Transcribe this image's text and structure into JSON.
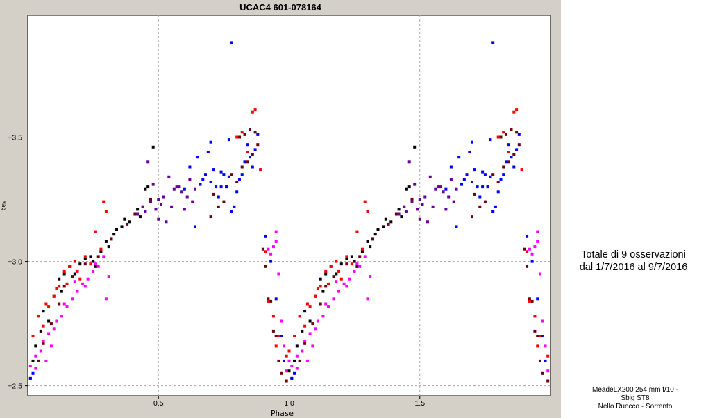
{
  "chart_data": {
    "type": "scatter",
    "title": "UCAC4 601-078164",
    "xlabel": "Phase",
    "ylabel": "Mag",
    "xlim": [
      0.0,
      2.0
    ],
    "ylim": [
      3.99,
      2.46
    ],
    "y_inverted": true,
    "grid": true,
    "xticks": [
      {
        "value": 0.5,
        "label": "0.5"
      },
      {
        "value": 1.0,
        "label": "1.0"
      },
      {
        "value": 1.5,
        "label": "1.5"
      }
    ],
    "yticks": [
      {
        "value": 2.5,
        "label": "+2.5"
      },
      {
        "value": 3.0,
        "label": "+3.0"
      },
      {
        "value": 3.5,
        "label": "+3.5"
      }
    ],
    "phase_repeat": 1.0,
    "series": [
      {
        "color": "#000000",
        "points": [
          [
            0.0,
            2.56
          ],
          [
            0.02,
            2.6
          ],
          [
            0.03,
            2.66
          ],
          [
            0.05,
            2.72
          ],
          [
            0.1,
            2.86
          ],
          [
            0.12,
            2.93
          ],
          [
            0.14,
            2.95
          ],
          [
            0.16,
            2.98
          ],
          [
            0.2,
            2.99
          ],
          [
            0.24,
            3.02
          ],
          [
            0.28,
            3.04
          ],
          [
            0.3,
            3.08
          ],
          [
            0.33,
            3.11
          ],
          [
            0.36,
            3.14
          ],
          [
            0.39,
            3.16
          ],
          [
            0.42,
            3.21
          ],
          [
            0.45,
            3.29
          ],
          [
            0.48,
            3.46
          ],
          [
            0.43,
            3.18
          ],
          [
            0.37,
            3.17
          ],
          [
            0.31,
            3.06
          ],
          [
            0.26,
            2.98
          ],
          [
            0.22,
            3.01
          ],
          [
            0.18,
            2.95
          ],
          [
            0.08,
            2.76
          ],
          [
            0.06,
            2.8
          ],
          [
            0.13,
            2.88
          ],
          [
            0.34,
            3.13
          ],
          [
            0.46,
            3.3
          ],
          [
            0.25,
            3.0
          ]
        ]
      },
      {
        "color": "#6b0010",
        "points": [
          [
            0.01,
            2.53
          ],
          [
            0.04,
            2.6
          ],
          [
            0.06,
            2.67
          ],
          [
            0.09,
            2.75
          ],
          [
            0.12,
            2.83
          ],
          [
            0.14,
            2.9
          ],
          [
            0.17,
            2.94
          ],
          [
            0.22,
            2.99
          ],
          [
            0.27,
            3.02
          ],
          [
            0.32,
            3.09
          ],
          [
            0.38,
            3.15
          ],
          [
            0.41,
            3.19
          ],
          [
            0.44,
            3.22
          ],
          [
            0.47,
            3.25
          ],
          [
            0.7,
            3.18
          ],
          [
            0.73,
            3.22
          ],
          [
            0.75,
            3.24
          ],
          [
            0.8,
            3.32
          ],
          [
            0.82,
            3.38
          ],
          [
            0.84,
            3.4
          ],
          [
            0.86,
            3.43
          ],
          [
            0.88,
            3.47
          ],
          [
            0.9,
            3.05
          ],
          [
            0.92,
            2.85
          ],
          [
            0.94,
            2.72
          ],
          [
            0.96,
            2.6
          ],
          [
            0.99,
            2.52
          ],
          [
            0.97,
            2.55
          ],
          [
            0.81,
            3.5
          ],
          [
            0.83,
            3.51
          ],
          [
            0.85,
            3.53
          ],
          [
            0.78,
            3.35
          ],
          [
            0.91,
            2.98
          ],
          [
            0.93,
            2.84
          ],
          [
            0.95,
            2.7
          ],
          [
            0.76,
            3.3
          ],
          [
            0.71,
            3.27
          ],
          [
            0.87,
            3.52
          ]
        ]
      },
      {
        "color": "#ff0000",
        "points": [
          [
            0.0,
            2.64
          ],
          [
            0.02,
            2.7
          ],
          [
            0.04,
            2.78
          ],
          [
            0.06,
            2.74
          ],
          [
            0.08,
            2.82
          ],
          [
            0.1,
            2.86
          ],
          [
            0.12,
            2.9
          ],
          [
            0.14,
            2.96
          ],
          [
            0.16,
            2.98
          ],
          [
            0.18,
            3.0
          ],
          [
            0.2,
            2.93
          ],
          [
            0.22,
            3.02
          ],
          [
            0.24,
            2.99
          ],
          [
            0.26,
            3.12
          ],
          [
            0.28,
            3.05
          ],
          [
            0.29,
            3.24
          ],
          [
            0.3,
            3.2
          ],
          [
            0.8,
            3.5
          ],
          [
            0.82,
            3.52
          ],
          [
            0.86,
            3.6
          ],
          [
            0.87,
            3.61
          ],
          [
            0.84,
            3.44
          ],
          [
            0.89,
            3.37
          ],
          [
            0.91,
            3.04
          ],
          [
            0.92,
            2.84
          ],
          [
            0.94,
            2.78
          ],
          [
            0.96,
            2.7
          ],
          [
            0.99,
            2.62
          ],
          [
            0.07,
            2.83
          ],
          [
            0.11,
            2.89
          ],
          [
            0.15,
            2.91
          ],
          [
            0.19,
            2.96
          ],
          [
            0.95,
            2.66
          ]
        ]
      },
      {
        "color": "#ff00ff",
        "points": [
          [
            0.0,
            2.6
          ],
          [
            0.01,
            2.58
          ],
          [
            0.03,
            2.62
          ],
          [
            0.05,
            2.64
          ],
          [
            0.06,
            2.68
          ],
          [
            0.08,
            2.71
          ],
          [
            0.1,
            2.73
          ],
          [
            0.11,
            2.76
          ],
          [
            0.13,
            2.78
          ],
          [
            0.15,
            2.82
          ],
          [
            0.17,
            2.85
          ],
          [
            0.19,
            2.88
          ],
          [
            0.21,
            2.91
          ],
          [
            0.23,
            2.93
          ],
          [
            0.25,
            2.96
          ],
          [
            0.27,
            2.98
          ],
          [
            0.29,
            3.02
          ],
          [
            0.31,
            2.94
          ],
          [
            0.3,
            2.85
          ],
          [
            0.26,
            2.99
          ],
          [
            0.22,
            2.9
          ],
          [
            0.18,
            2.92
          ],
          [
            0.14,
            2.83
          ],
          [
            0.09,
            2.66
          ],
          [
            0.07,
            2.6
          ],
          [
            0.93,
            3.03
          ],
          [
            0.94,
            3.06
          ],
          [
            0.95,
            3.08
          ],
          [
            0.96,
            2.95
          ],
          [
            0.97,
            2.76
          ],
          [
            0.98,
            2.66
          ],
          [
            0.99,
            2.56
          ],
          [
            0.92,
            3.05
          ],
          [
            0.95,
            3.12
          ],
          [
            0.03,
            2.57
          ]
        ]
      },
      {
        "color": "#660099",
        "points": [
          [
            0.45,
            3.2
          ],
          [
            0.47,
            3.24
          ],
          [
            0.49,
            3.21
          ],
          [
            0.5,
            3.25
          ],
          [
            0.51,
            3.23
          ],
          [
            0.53,
            3.16
          ],
          [
            0.55,
            3.22
          ],
          [
            0.57,
            3.3
          ],
          [
            0.59,
            3.28
          ],
          [
            0.61,
            3.26
          ],
          [
            0.63,
            3.24
          ],
          [
            0.48,
            3.31
          ],
          [
            0.52,
            3.26
          ],
          [
            0.54,
            3.34
          ],
          [
            0.56,
            3.29
          ],
          [
            0.58,
            3.3
          ],
          [
            0.6,
            3.21
          ],
          [
            0.62,
            3.33
          ],
          [
            0.64,
            3.29
          ],
          [
            0.46,
            3.4
          ],
          [
            0.44,
            3.22
          ],
          [
            0.42,
            3.19
          ],
          [
            0.5,
            3.17
          ]
        ]
      },
      {
        "color": "#0000ff",
        "points": [
          [
            0.01,
            2.53
          ],
          [
            0.02,
            2.55
          ],
          [
            0.64,
            3.14
          ],
          [
            0.66,
            3.31
          ],
          [
            0.67,
            3.33
          ],
          [
            0.68,
            3.35
          ],
          [
            0.7,
            3.32
          ],
          [
            0.71,
            3.37
          ],
          [
            0.72,
            3.3
          ],
          [
            0.73,
            3.26
          ],
          [
            0.74,
            3.3
          ],
          [
            0.75,
            3.35
          ],
          [
            0.76,
            3.3
          ],
          [
            0.77,
            3.34
          ],
          [
            0.78,
            3.2
          ],
          [
            0.79,
            3.22
          ],
          [
            0.8,
            3.28
          ],
          [
            0.81,
            3.33
          ],
          [
            0.82,
            3.35
          ],
          [
            0.83,
            3.4
          ],
          [
            0.84,
            3.47
          ],
          [
            0.85,
            3.42
          ],
          [
            0.86,
            3.38
          ],
          [
            0.87,
            3.45
          ],
          [
            0.69,
            3.44
          ],
          [
            0.7,
            3.48
          ],
          [
            0.77,
            3.49
          ],
          [
            0.65,
            3.42
          ],
          [
            0.78,
            3.88
          ],
          [
            0.88,
            3.51
          ],
          [
            0.91,
            3.1
          ],
          [
            0.93,
            3.0
          ],
          [
            0.95,
            2.85
          ],
          [
            0.97,
            2.7
          ],
          [
            0.98,
            2.6
          ],
          [
            0.6,
            3.29
          ],
          [
            0.62,
            3.38
          ],
          [
            0.74,
            3.36
          ]
        ]
      }
    ]
  },
  "note": {
    "line1": "Totale di 9 osservazioni",
    "line2": "dal 1/7/2016 al 9/7/2016"
  },
  "credits": {
    "line1": "MeadeLX200 254 mm f/10 -",
    "line2": "Sbig ST8",
    "line3": "Nello Ruocco - Sorrento"
  }
}
